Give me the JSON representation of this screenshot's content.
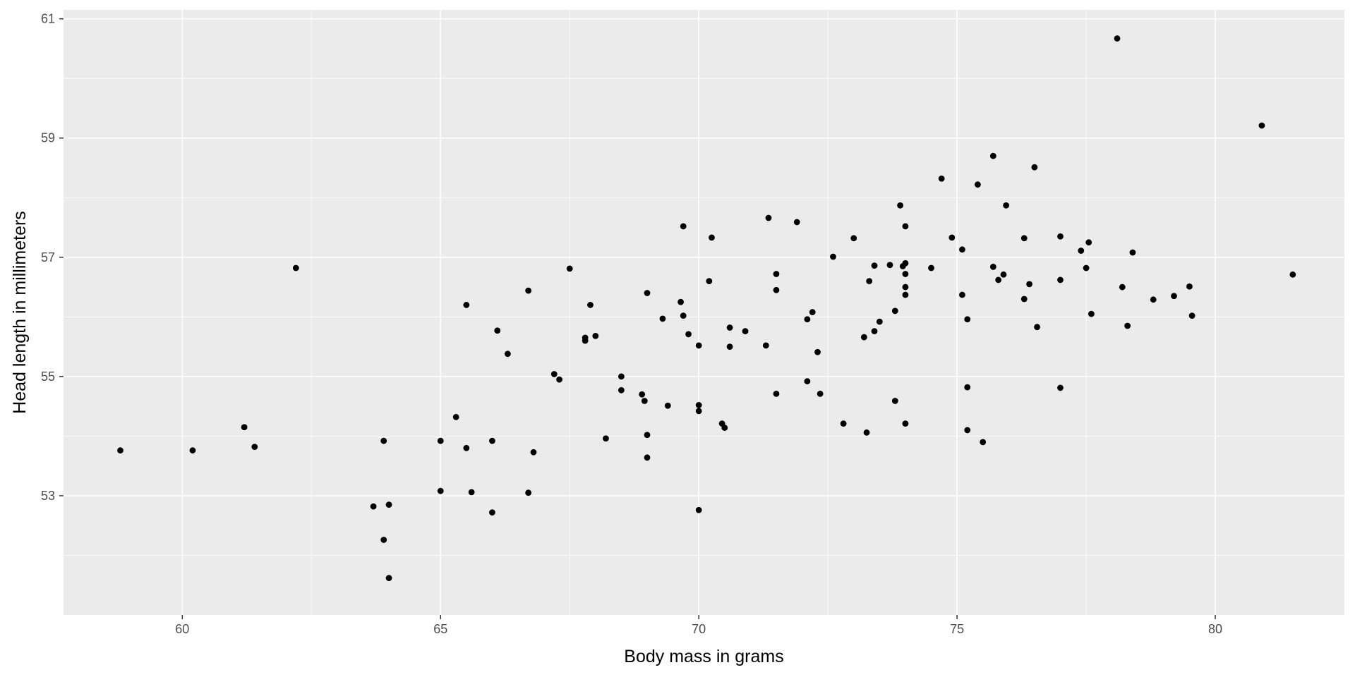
{
  "chart_data": {
    "type": "scatter",
    "title": "",
    "xlabel": "Body mass in grams",
    "ylabel": "Head length in millimeters",
    "xlim": [
      57.7,
      82.5
    ],
    "ylim": [
      51.0,
      61.15
    ],
    "x_ticks": [
      60,
      65,
      70,
      75,
      80
    ],
    "y_ticks": [
      53,
      55,
      57,
      59,
      61
    ],
    "grid": true,
    "legend": "none",
    "colors": {
      "panel": "#ebebeb",
      "grid_major": "#ffffff",
      "point": "#000000",
      "tick_label": "#4d4d4d",
      "tick_mark": "#333333"
    },
    "points": [
      [
        58.8,
        53.76
      ],
      [
        60.2,
        53.76
      ],
      [
        61.2,
        54.15
      ],
      [
        61.4,
        53.82
      ],
      [
        62.2,
        56.82
      ],
      [
        63.7,
        52.82
      ],
      [
        63.9,
        53.92
      ],
      [
        63.9,
        52.26
      ],
      [
        64.0,
        52.85
      ],
      [
        64.0,
        51.62
      ],
      [
        65.0,
        53.92
      ],
      [
        65.0,
        53.08
      ],
      [
        65.3,
        54.32
      ],
      [
        65.5,
        56.2
      ],
      [
        65.5,
        53.8
      ],
      [
        65.6,
        53.06
      ],
      [
        66.0,
        53.92
      ],
      [
        66.0,
        52.72
      ],
      [
        66.1,
        55.77
      ],
      [
        66.3,
        55.38
      ],
      [
        66.7,
        56.44
      ],
      [
        66.7,
        53.05
      ],
      [
        66.8,
        53.73
      ],
      [
        67.2,
        55.04
      ],
      [
        67.3,
        54.95
      ],
      [
        67.5,
        56.81
      ],
      [
        67.8,
        55.65
      ],
      [
        67.8,
        55.6
      ],
      [
        67.9,
        56.2
      ],
      [
        68.0,
        55.68
      ],
      [
        68.2,
        53.96
      ],
      [
        68.5,
        55.0
      ],
      [
        68.5,
        54.77
      ],
      [
        68.9,
        54.7
      ],
      [
        68.95,
        54.59
      ],
      [
        69.0,
        56.4
      ],
      [
        69.0,
        54.02
      ],
      [
        69.0,
        53.64
      ],
      [
        69.3,
        55.97
      ],
      [
        69.4,
        54.51
      ],
      [
        69.65,
        56.25
      ],
      [
        69.7,
        56.02
      ],
      [
        69.7,
        57.52
      ],
      [
        69.8,
        55.71
      ],
      [
        70.0,
        55.52
      ],
      [
        70.0,
        54.52
      ],
      [
        70.0,
        54.42
      ],
      [
        70.0,
        52.76
      ],
      [
        70.2,
        56.6
      ],
      [
        70.25,
        57.33
      ],
      [
        70.45,
        54.21
      ],
      [
        70.5,
        54.14
      ],
      [
        70.6,
        55.82
      ],
      [
        70.6,
        55.5
      ],
      [
        70.9,
        55.76
      ],
      [
        71.3,
        55.52
      ],
      [
        71.35,
        57.66
      ],
      [
        71.5,
        56.72
      ],
      [
        71.5,
        56.45
      ],
      [
        71.5,
        54.71
      ],
      [
        71.9,
        57.59
      ],
      [
        72.1,
        55.96
      ],
      [
        72.1,
        54.92
      ],
      [
        72.2,
        56.08
      ],
      [
        72.3,
        55.41
      ],
      [
        72.35,
        54.71
      ],
      [
        72.6,
        57.01
      ],
      [
        72.8,
        54.21
      ],
      [
        73.0,
        57.32
      ],
      [
        73.2,
        55.66
      ],
      [
        73.25,
        54.06
      ],
      [
        73.3,
        56.6
      ],
      [
        73.4,
        56.86
      ],
      [
        73.4,
        55.76
      ],
      [
        73.5,
        55.92
      ],
      [
        73.7,
        56.87
      ],
      [
        73.8,
        56.1
      ],
      [
        73.8,
        54.59
      ],
      [
        73.9,
        57.87
      ],
      [
        73.95,
        56.85
      ],
      [
        74.0,
        57.52
      ],
      [
        74.0,
        56.9
      ],
      [
        74.0,
        56.72
      ],
      [
        74.0,
        56.5
      ],
      [
        74.0,
        56.37
      ],
      [
        74.0,
        54.21
      ],
      [
        74.5,
        56.82
      ],
      [
        74.7,
        58.32
      ],
      [
        74.9,
        57.33
      ],
      [
        75.1,
        57.13
      ],
      [
        75.1,
        56.37
      ],
      [
        75.2,
        55.96
      ],
      [
        75.2,
        54.82
      ],
      [
        75.2,
        54.1
      ],
      [
        75.4,
        58.22
      ],
      [
        75.5,
        53.9
      ],
      [
        75.7,
        58.7
      ],
      [
        75.7,
        56.84
      ],
      [
        75.8,
        56.62
      ],
      [
        75.9,
        56.71
      ],
      [
        75.95,
        57.87
      ],
      [
        76.3,
        57.32
      ],
      [
        76.3,
        56.3
      ],
      [
        76.4,
        56.55
      ],
      [
        76.5,
        58.51
      ],
      [
        76.55,
        55.83
      ],
      [
        77.0,
        57.35
      ],
      [
        77.0,
        56.62
      ],
      [
        77.0,
        54.81
      ],
      [
        77.4,
        57.11
      ],
      [
        77.5,
        56.82
      ],
      [
        77.55,
        57.25
      ],
      [
        77.6,
        56.05
      ],
      [
        78.1,
        60.67
      ],
      [
        78.2,
        56.5
      ],
      [
        78.3,
        55.85
      ],
      [
        78.4,
        57.08
      ],
      [
        78.8,
        56.29
      ],
      [
        79.2,
        56.35
      ],
      [
        79.5,
        56.51
      ],
      [
        79.55,
        56.02
      ],
      [
        80.9,
        59.21
      ],
      [
        81.5,
        56.71
      ]
    ]
  }
}
